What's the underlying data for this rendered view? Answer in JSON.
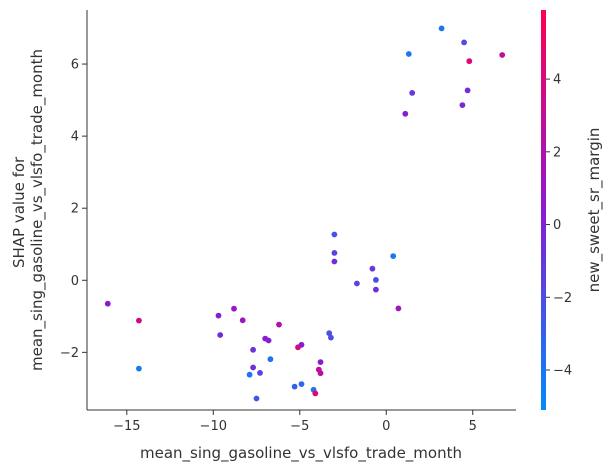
{
  "chart_data": {
    "type": "scatter",
    "xlabel": "mean_sing_gasoline_vs_vlsfo_trade_month",
    "ylabel_line1": "SHAP value for",
    "ylabel_line2": "mean_sing_gasoline_vs_vlsfo_trade_month",
    "colorbar_label": "new_sweet_sr_margin",
    "xlim": [
      -17.3,
      7.5
    ],
    "ylim": [
      -3.6,
      7.5
    ],
    "x_ticks": [
      -15,
      -10,
      -5,
      0,
      5
    ],
    "y_ticks": [
      -2,
      0,
      2,
      4,
      6
    ],
    "colorbar_range": [
      -5.1,
      5.9
    ],
    "colorbar_ticks": [
      -4,
      -2,
      0,
      2,
      4
    ],
    "colors": {
      "low": "#008bfb",
      "mid": "#8a1bd1",
      "high": "#ff0052",
      "axis": "#333333"
    },
    "points": [
      {
        "x": -16.1,
        "y": -0.65,
        "c": 0.5
      },
      {
        "x": -14.3,
        "y": -1.12,
        "c": 3.5
      },
      {
        "x": -14.3,
        "y": -2.45,
        "c": -4.3
      },
      {
        "x": -9.7,
        "y": -0.98,
        "c": 0.3
      },
      {
        "x": -9.6,
        "y": -1.52,
        "c": -0.5
      },
      {
        "x": -8.8,
        "y": -0.79,
        "c": 1.0
      },
      {
        "x": -8.3,
        "y": -1.11,
        "c": 1.2
      },
      {
        "x": -7.9,
        "y": -2.62,
        "c": -3.8
      },
      {
        "x": -7.7,
        "y": -1.93,
        "c": -0.8
      },
      {
        "x": -7.7,
        "y": -2.42,
        "c": -0.5
      },
      {
        "x": -7.5,
        "y": -3.28,
        "c": -2.5
      },
      {
        "x": -7.3,
        "y": -2.57,
        "c": -1.5
      },
      {
        "x": -7.0,
        "y": -1.62,
        "c": 0.2
      },
      {
        "x": -6.8,
        "y": -1.67,
        "c": 0.1
      },
      {
        "x": -6.7,
        "y": -2.19,
        "c": -3.8
      },
      {
        "x": -6.2,
        "y": -1.23,
        "c": 2.0
      },
      {
        "x": -5.3,
        "y": -2.95,
        "c": -3.0
      },
      {
        "x": -5.1,
        "y": -1.86,
        "c": 3.8
      },
      {
        "x": -4.9,
        "y": -1.79,
        "c": 0.4
      },
      {
        "x": -4.9,
        "y": -2.88,
        "c": -3.2
      },
      {
        "x": -4.2,
        "y": -3.04,
        "c": -4.0
      },
      {
        "x": -4.1,
        "y": -3.14,
        "c": 4.5
      },
      {
        "x": -3.9,
        "y": -2.48,
        "c": 3.0
      },
      {
        "x": -3.8,
        "y": -2.27,
        "c": 0.5
      },
      {
        "x": -3.8,
        "y": -2.58,
        "c": 2.8
      },
      {
        "x": -3.3,
        "y": -1.47,
        "c": -2.2
      },
      {
        "x": -3.2,
        "y": -1.59,
        "c": -2.0
      },
      {
        "x": -3.0,
        "y": 1.27,
        "c": -2.3
      },
      {
        "x": -3.0,
        "y": 0.76,
        "c": -1.5
      },
      {
        "x": -3.0,
        "y": 0.52,
        "c": -0.5
      },
      {
        "x": -1.7,
        "y": -0.09,
        "c": -1.5
      },
      {
        "x": -0.8,
        "y": 0.32,
        "c": -1.0
      },
      {
        "x": -0.6,
        "y": 0.01,
        "c": -2.0
      },
      {
        "x": -0.6,
        "y": -0.26,
        "c": -0.5
      },
      {
        "x": 0.4,
        "y": 0.67,
        "c": -4.1
      },
      {
        "x": 0.7,
        "y": -0.78,
        "c": 1.5
      },
      {
        "x": 1.1,
        "y": 4.62,
        "c": 0.5
      },
      {
        "x": 1.3,
        "y": 6.28,
        "c": -4.0
      },
      {
        "x": 1.5,
        "y": 5.2,
        "c": -1.0
      },
      {
        "x": 3.2,
        "y": 6.99,
        "c": -4.0
      },
      {
        "x": 4.4,
        "y": 4.86,
        "c": -0.3
      },
      {
        "x": 4.5,
        "y": 6.6,
        "c": -2.0
      },
      {
        "x": 4.7,
        "y": 5.27,
        "c": -0.5
      },
      {
        "x": 4.8,
        "y": 6.08,
        "c": 4.5
      },
      {
        "x": 6.7,
        "y": 6.25,
        "c": 3.0
      }
    ]
  }
}
